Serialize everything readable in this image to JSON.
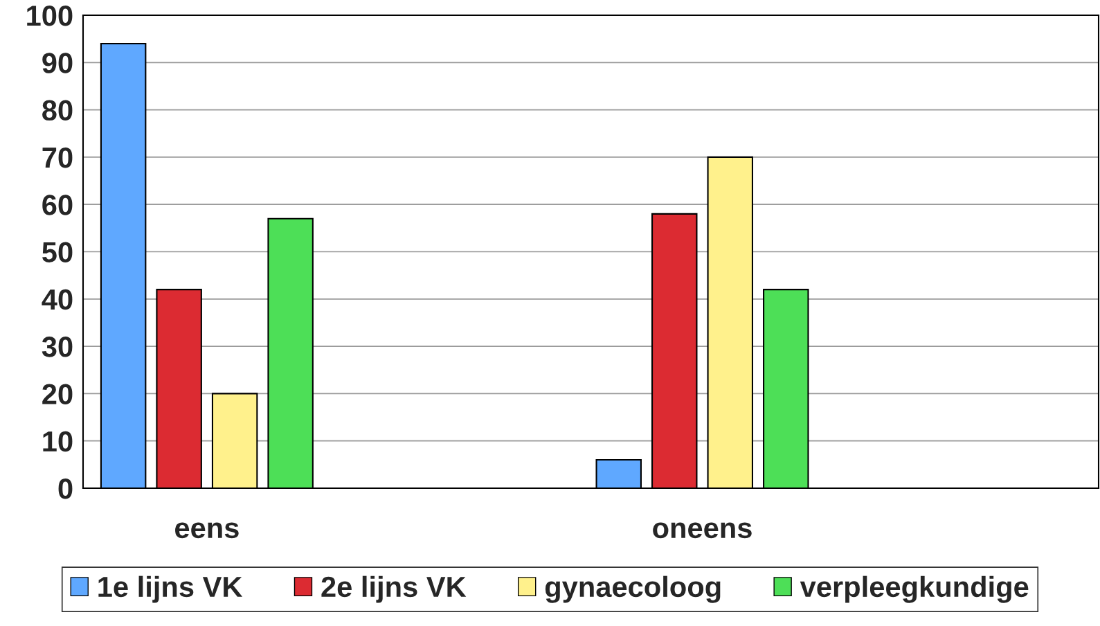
{
  "chart_data": {
    "type": "bar",
    "categories": [
      "eens",
      "oneens"
    ],
    "series": [
      {
        "name": "1e lijns VK",
        "color": "#5fa8ff",
        "values": [
          94,
          6
        ]
      },
      {
        "name": "2e lijns VK",
        "color": "#dc2b32",
        "values": [
          42,
          58
        ]
      },
      {
        "name": "gynaecoloog",
        "color": "#fff18c",
        "values": [
          20,
          70
        ]
      },
      {
        "name": "verpleegkundige",
        "color": "#4ddf57",
        "values": [
          57,
          42
        ]
      }
    ],
    "ylim": [
      0,
      100
    ],
    "yticks": [
      0,
      10,
      20,
      30,
      40,
      50,
      60,
      70,
      80,
      90,
      100
    ],
    "grid": "y",
    "legend": "bottom"
  }
}
